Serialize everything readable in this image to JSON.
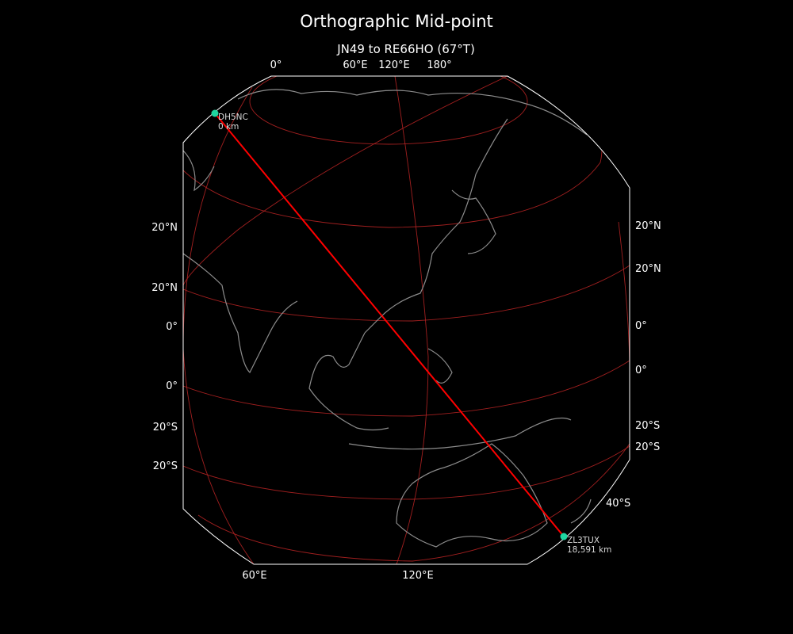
{
  "title": "Orthographic Mid-point",
  "subtitle": "JN49 to RE66HO (67°T)",
  "colors": {
    "background": "#000000",
    "boundary": "#ffffff",
    "grid": "#b22222",
    "path": "#ff0000",
    "coast": "#8c8c8c",
    "station": "#1fd6a0"
  },
  "top_labels": [
    "0°",
    "60°E",
    "120°E",
    "180°"
  ],
  "bottom_labels": [
    "60°E",
    "120°E"
  ],
  "left_labels": [
    "20°N",
    "20°N",
    "0°",
    "0°",
    "20°S",
    "20°S"
  ],
  "right_labels": [
    "20°N",
    "20°N",
    "0°",
    "0°",
    "20°S",
    "20°S",
    "40°S"
  ],
  "stations": [
    {
      "call": "DH5NC",
      "distance": "0 km"
    },
    {
      "call": "ZL3TUX",
      "distance": "18,591 km"
    }
  ]
}
